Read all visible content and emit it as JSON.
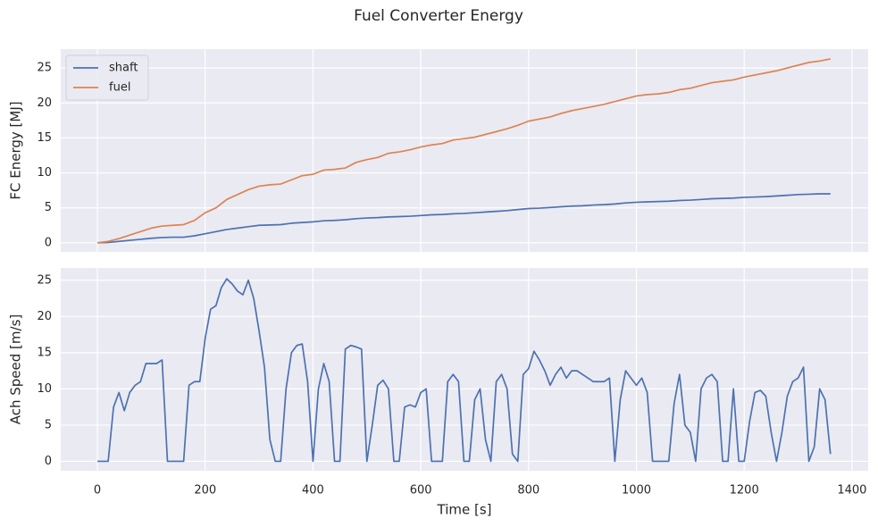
{
  "title": "Fuel Converter Energy",
  "chart_data": [
    {
      "type": "line",
      "ylabel": "FC Energy [MJ]",
      "legend": "upper left",
      "grid": true,
      "xlim": [
        -68,
        1430
      ],
      "xticks": [
        0,
        200,
        400,
        600,
        800,
        1000,
        1200,
        1400
      ],
      "ylim": [
        -1.3,
        27.7
      ],
      "yticks": [
        0,
        5,
        10,
        15,
        20,
        25
      ],
      "x": [
        0,
        20,
        40,
        60,
        80,
        100,
        120,
        140,
        160,
        180,
        200,
        220,
        240,
        260,
        280,
        300,
        320,
        340,
        360,
        380,
        400,
        420,
        440,
        460,
        480,
        500,
        520,
        540,
        560,
        580,
        600,
        620,
        640,
        660,
        680,
        700,
        720,
        740,
        760,
        780,
        800,
        820,
        840,
        860,
        880,
        900,
        920,
        940,
        960,
        980,
        1000,
        1020,
        1040,
        1060,
        1080,
        1100,
        1120,
        1140,
        1160,
        1180,
        1200,
        1220,
        1240,
        1260,
        1280,
        1300,
        1320,
        1340,
        1360
      ],
      "series": [
        {
          "name": "shaft",
          "color": "#4c72b0",
          "values": [
            0,
            0.05,
            0.2,
            0.35,
            0.5,
            0.65,
            0.75,
            0.8,
            0.8,
            1.0,
            1.3,
            1.6,
            1.9,
            2.1,
            2.3,
            2.5,
            2.55,
            2.6,
            2.8,
            2.9,
            3.0,
            3.15,
            3.2,
            3.3,
            3.45,
            3.55,
            3.6,
            3.7,
            3.75,
            3.8,
            3.9,
            4.0,
            4.05,
            4.15,
            4.2,
            4.3,
            4.4,
            4.5,
            4.6,
            4.75,
            4.9,
            4.95,
            5.05,
            5.15,
            5.25,
            5.3,
            5.4,
            5.45,
            5.55,
            5.7,
            5.8,
            5.85,
            5.9,
            5.95,
            6.05,
            6.1,
            6.2,
            6.3,
            6.35,
            6.4,
            6.5,
            6.55,
            6.6,
            6.7,
            6.8,
            6.9,
            6.95,
            7.0,
            7.0
          ]
        },
        {
          "name": "fuel",
          "color": "#dd8452",
          "values": [
            0,
            0.2,
            0.6,
            1.1,
            1.6,
            2.1,
            2.4,
            2.5,
            2.6,
            3.2,
            4.3,
            5.0,
            6.2,
            6.9,
            7.6,
            8.1,
            8.3,
            8.4,
            9.0,
            9.6,
            9.8,
            10.4,
            10.5,
            10.7,
            11.5,
            11.9,
            12.2,
            12.8,
            13.0,
            13.3,
            13.7,
            14.0,
            14.2,
            14.7,
            14.9,
            15.1,
            15.5,
            15.9,
            16.3,
            16.8,
            17.4,
            17.7,
            18.0,
            18.5,
            18.9,
            19.2,
            19.5,
            19.8,
            20.2,
            20.6,
            21.0,
            21.2,
            21.3,
            21.5,
            21.9,
            22.1,
            22.5,
            22.9,
            23.1,
            23.3,
            23.7,
            24.0,
            24.3,
            24.6,
            25.0,
            25.4,
            25.8,
            26.0,
            26.3
          ]
        }
      ]
    },
    {
      "type": "line",
      "xlabel": "Time [s]",
      "ylabel": "Ach Speed [m/s]",
      "grid": true,
      "xlim": [
        -68,
        1430
      ],
      "xticks": [
        0,
        200,
        400,
        600,
        800,
        1000,
        1200,
        1400
      ],
      "ylim": [
        -1.3,
        26.7
      ],
      "yticks": [
        0,
        5,
        10,
        15,
        20,
        25
      ],
      "x": [
        0,
        10,
        20,
        30,
        40,
        50,
        60,
        70,
        80,
        90,
        100,
        110,
        120,
        130,
        140,
        150,
        160,
        170,
        180,
        190,
        200,
        210,
        220,
        230,
        240,
        250,
        260,
        270,
        280,
        290,
        300,
        310,
        320,
        330,
        340,
        350,
        360,
        370,
        380,
        390,
        400,
        410,
        420,
        430,
        440,
        450,
        460,
        470,
        480,
        490,
        500,
        510,
        520,
        530,
        540,
        550,
        560,
        570,
        580,
        590,
        600,
        610,
        620,
        630,
        640,
        650,
        660,
        670,
        680,
        690,
        700,
        710,
        720,
        730,
        740,
        750,
        760,
        770,
        780,
        790,
        800,
        810,
        820,
        830,
        840,
        850,
        860,
        870,
        880,
        890,
        900,
        910,
        920,
        930,
        940,
        950,
        960,
        970,
        980,
        990,
        1000,
        1010,
        1020,
        1030,
        1040,
        1050,
        1060,
        1070,
        1080,
        1090,
        1100,
        1110,
        1120,
        1130,
        1140,
        1150,
        1160,
        1170,
        1180,
        1190,
        1200,
        1210,
        1220,
        1230,
        1240,
        1250,
        1260,
        1270,
        1280,
        1290,
        1300,
        1310,
        1320,
        1330,
        1340,
        1350,
        1360
      ],
      "series": [
        {
          "color": "#4c72b0",
          "values": [
            0,
            0,
            0,
            7.5,
            9.5,
            7,
            9.5,
            10.5,
            11,
            13.5,
            13.5,
            13.5,
            14,
            0,
            0,
            0,
            0,
            10.5,
            11,
            11,
            17,
            21,
            21.5,
            24,
            25.2,
            24.5,
            23.5,
            23,
            25,
            22.5,
            18,
            13,
            3,
            0,
            0,
            10,
            15,
            16,
            16.2,
            11,
            0,
            10,
            13.5,
            11,
            0,
            0,
            15.5,
            16,
            15.8,
            15.5,
            0,
            5,
            10.5,
            11.2,
            10,
            0,
            0,
            7.5,
            7.8,
            7.5,
            9.5,
            10,
            0,
            0,
            0,
            11,
            12,
            11,
            0,
            0,
            8.5,
            10,
            3,
            0,
            11,
            12,
            10,
            1,
            0,
            12,
            12.8,
            15.2,
            14,
            12.5,
            10.5,
            12,
            13,
            11.5,
            12.5,
            12.5,
            12,
            11.5,
            11,
            11,
            11,
            11.5,
            0,
            8.5,
            12.5,
            11.5,
            10.5,
            11.5,
            9.5,
            0,
            0,
            0,
            0,
            8,
            12,
            5,
            4,
            0,
            10,
            11.5,
            12,
            11,
            0,
            0,
            10,
            0,
            0,
            5.5,
            9.5,
            9.8,
            9,
            4,
            0,
            4,
            9,
            11,
            11.5,
            13,
            0,
            2,
            10,
            8.5,
            1
          ]
        }
      ]
    }
  ]
}
